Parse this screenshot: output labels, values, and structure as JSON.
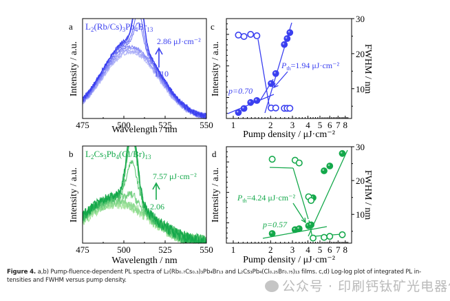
{
  "colors": {
    "blue": "#3a3ff0",
    "blue_light": "#b9bcf8",
    "green": "#13a84a",
    "green_light": "#a8e5a0",
    "axis": "#000000"
  },
  "chart_data": [
    {
      "panel": "a",
      "type": "line",
      "title": "L2(Rb/Cs)3Pb4Br13",
      "title_parts": [
        "L",
        "2",
        "(Rb/Cs)",
        "3",
        "Pb",
        "4",
        "Br",
        "13"
      ],
      "xlabel": "Wavelength / nm",
      "ylabel": "Intensity / a.u.",
      "xlim": [
        475,
        550
      ],
      "xticks": [
        475,
        500,
        525,
        550
      ],
      "annotation_high": "2.86 μJ·cm⁻²",
      "annotation_low": "1.10",
      "series": [
        {
          "fluence": 1.1,
          "broad_amp": 0.66,
          "peak_amp": 0.0
        },
        {
          "fluence": 1.22,
          "broad_amp": 0.68,
          "peak_amp": 0.0
        },
        {
          "fluence": 1.38,
          "broad_amp": 0.7,
          "peak_amp": 0.0
        },
        {
          "fluence": 1.55,
          "broad_amp": 0.72,
          "peak_amp": 0.0
        },
        {
          "fluence": 2.02,
          "broad_amp": 0.74,
          "peak_amp": 0.25
        },
        {
          "fluence": 2.2,
          "broad_amp": 0.76,
          "peak_amp": 0.34
        },
        {
          "fluence": 2.58,
          "broad_amp": 0.78,
          "peak_amp": 0.56
        },
        {
          "fluence": 2.72,
          "broad_amp": 0.79,
          "peak_amp": 0.58
        },
        {
          "fluence": 2.86,
          "broad_amp": 0.8,
          "peak_amp": 0.6
        }
      ],
      "broad_center_nm": 504,
      "broad_width_nm": 17,
      "peak_center_nm": 509,
      "peak_width_nm": 2.6
    },
    {
      "panel": "b",
      "type": "line",
      "title": "L2Cs3Pb4(Cl/Br)13",
      "title_parts": [
        "L",
        "2",
        "Cs",
        "3",
        "Pb",
        "4",
        "(Cl/Br)",
        "13"
      ],
      "xlabel": "Wavelength / nm",
      "ylabel": "Intensity / a.u.",
      "xlim": [
        475,
        550
      ],
      "xticks": [
        475,
        500,
        525,
        550
      ],
      "annotation_high": "7.57 μJ·cm⁻²",
      "annotation_low": "2.06",
      "series": [
        {
          "fluence": 2.06,
          "broad_amp": 0.4,
          "peak_amp": 0.0
        },
        {
          "fluence": 3.15,
          "broad_amp": 0.42,
          "peak_amp": 0.0
        },
        {
          "fluence": 4.24,
          "broad_amp": 0.44,
          "peak_amp": 0.1
        },
        {
          "fluence": 4.4,
          "broad_amp": 0.46,
          "peak_amp": 0.42
        },
        {
          "fluence": 5.4,
          "broad_amp": 0.47,
          "peak_amp": 0.66
        },
        {
          "fluence": 6.0,
          "broad_amp": 0.48,
          "peak_amp": 0.72
        },
        {
          "fluence": 7.57,
          "broad_amp": 0.49,
          "peak_amp": 0.78
        }
      ],
      "broad_center_nm": 496,
      "broad_width_nm": 20,
      "peak_center_nm": 505,
      "peak_width_nm": 3.2
    },
    {
      "panel": "c",
      "type": "scatter",
      "xscale": "log",
      "xlabel": "Pump density / μJ·cm⁻²",
      "ylabel_left": "Intensity / a.u.",
      "ylabel_right": "FWHM / nm",
      "xlim": [
        0.88,
        9.0
      ],
      "xticks": [
        1,
        2,
        3,
        4,
        5,
        6,
        7,
        8
      ],
      "ylim_right": [
        1.5,
        30
      ],
      "yticks_right": [
        10,
        20,
        30
      ],
      "ylim_left_log": [
        0,
        1
      ],
      "intensity_points": {
        "x": [
          1.1,
          1.22,
          1.38,
          1.55,
          2.02,
          2.2,
          2.58,
          2.72,
          2.86
        ],
        "y_rel": [
          0.06,
          0.1,
          0.16,
          0.18,
          0.35,
          0.45,
          0.74,
          0.8,
          0.86
        ]
      },
      "fwhm_points": {
        "x": [
          1.1,
          1.22,
          1.38,
          1.55,
          2.02,
          2.2,
          2.58,
          2.72,
          2.86
        ],
        "y": [
          25.3,
          24.9,
          25.5,
          25.1,
          4.5,
          4.5,
          4.4,
          4.4,
          4.4
        ]
      },
      "p_label": "p=0.70",
      "pth_label_prefix": "P",
      "pth_label_sub": "th",
      "pth_label_value": "=1.94 μJ·cm⁻²",
      "threshold": 1.94
    },
    {
      "panel": "d",
      "type": "scatter",
      "xscale": "log",
      "xlabel": "Pump density / μJ·cm⁻²",
      "ylabel_left": "Intensity / a.u.",
      "ylabel_right": "FWHM / nm",
      "xlim": [
        0.88,
        9.0
      ],
      "xticks": [
        1,
        2,
        3,
        4,
        5,
        6,
        7,
        8
      ],
      "ylim_right": [
        1.5,
        30
      ],
      "yticks_right": [
        10,
        20,
        30
      ],
      "intensity_points": {
        "x": [
          2.06,
          3.15,
          3.4,
          4.05,
          4.24,
          4.4,
          5.4,
          6.0,
          7.57
        ],
        "y_rel": [
          0.1,
          0.14,
          0.15,
          0.18,
          0.19,
          0.47,
          0.75,
          0.8,
          0.93
        ]
      },
      "fwhm_points": {
        "x": [
          2.06,
          3.15,
          3.4,
          4.05,
          4.24,
          4.4,
          5.4,
          6.0,
          7.57
        ],
        "y": [
          26.3,
          26.0,
          25.2,
          15.2,
          14.1,
          3.0,
          3.2,
          3.5,
          4.0
        ]
      },
      "p_label": "p=0.57",
      "pth_label_prefix": "P",
      "pth_label_sub": "th",
      "pth_label_value": "=4.24 μJ·cm⁻²",
      "threshold": 4.24
    }
  ],
  "panel_letters": [
    "a",
    "b",
    "c",
    "d"
  ],
  "caption": {
    "label": "Figure 4.",
    "part1": " a,b) Pump-fluence-dependent PL spectra of L₂(Rb₀.₇Cs₀.₃)₃Pb₄Br₁₃ and L₂Cs₃Pb₄(Cl₀.₂₅Br₀.₇₅)₁₃ films. c,d) Log-log plot of integrated PL in-",
    "part2": "tensities and FWHM versus pump density."
  },
  "watermark": "公众号 · 印刷钙钛矿光电器件"
}
